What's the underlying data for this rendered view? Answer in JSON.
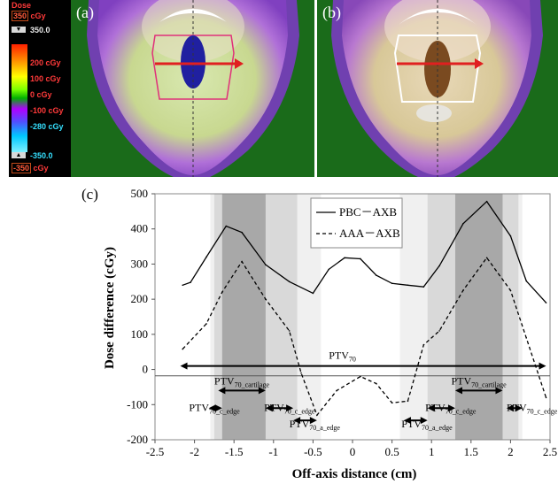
{
  "scale_bar": {
    "title": "Dose",
    "top_box": "350",
    "top_unit": "cGy",
    "max_label": "350.0",
    "levels": [
      "200 cGy",
      "100 cGy",
      "0 cGy",
      "-100 cGy",
      "-280 cGy"
    ],
    "min_label": "-350.0",
    "bottom_box": "-350",
    "bottom_unit": "cGy"
  },
  "panels": [
    {
      "label": "(a)"
    },
    {
      "label": "(b)"
    }
  ],
  "chart_label": "(c)",
  "chart_data": {
    "type": "line",
    "xlabel": "Off-axis distance (cm)",
    "ylabel": "Dose difference  (cGy)",
    "xlim": [
      -2.5,
      2.5
    ],
    "ylim": [
      -200,
      500
    ],
    "xticks": [
      "-2.5",
      "-2",
      "-1.5",
      "-1",
      "-0.5",
      "0",
      "0.5",
      "1",
      "1.5",
      "2",
      "2.5"
    ],
    "yticks": [
      "500",
      "400",
      "300",
      "200",
      "100",
      "0",
      "-100",
      "-200"
    ],
    "legend_position": "top-right",
    "series": [
      {
        "name": "PBC－AXB",
        "style": "solid",
        "x": [
          -2.15,
          -2.05,
          -1.85,
          -1.6,
          -1.4,
          -1.1,
          -0.8,
          -0.5,
          -0.3,
          -0.1,
          0.1,
          0.3,
          0.5,
          0.7,
          0.9,
          1.1,
          1.4,
          1.7,
          2.0,
          2.2,
          2.45
        ],
        "y": [
          240,
          248,
          320,
          408,
          390,
          298,
          250,
          217,
          285,
          318,
          315,
          268,
          245,
          240,
          235,
          295,
          415,
          478,
          380,
          252,
          190
        ]
      },
      {
        "name": "AAA－AXB",
        "style": "dashed",
        "x": [
          -2.15,
          -1.85,
          -1.65,
          -1.4,
          -1.1,
          -0.8,
          -0.65,
          -0.45,
          -0.2,
          0.1,
          0.3,
          0.5,
          0.7,
          0.9,
          1.1,
          1.4,
          1.7,
          2.0,
          2.2,
          2.45
        ],
        "y": [
          58,
          130,
          220,
          307,
          200,
          110,
          -10,
          -130,
          -60,
          -20,
          -40,
          -95,
          -90,
          70,
          110,
          225,
          318,
          225,
          90,
          -80
        ]
      }
    ],
    "bands": [
      {
        "from": -1.8,
        "to": -0.4,
        "shade": "#f0f0f0"
      },
      {
        "from": -1.75,
        "to": -0.7,
        "shade": "#d9d9d9"
      },
      {
        "from": -1.65,
        "to": -1.1,
        "shade": "#a8a8a8"
      },
      {
        "from": 0.6,
        "to": 2.15,
        "shade": "#f0f0f0"
      },
      {
        "from": 0.95,
        "to": 2.1,
        "shade": "#d9d9d9"
      },
      {
        "from": 1.3,
        "to": 1.9,
        "shade": "#a8a8a8"
      }
    ],
    "ref_line_y": -18,
    "annotations": [
      {
        "main": "PTV",
        "sub": "70",
        "from": -2.18,
        "to": 2.45,
        "y": 10,
        "label_x": -0.3,
        "label_y": 30
      },
      {
        "main": "PTV",
        "sub": "70_cartilage",
        "from": -1.7,
        "to": -1.1,
        "y": -60,
        "label_x": -1.75,
        "label_y": -43
      },
      {
        "main": "PTV",
        "sub": "70_c_edge",
        "from": -1.82,
        "to": -1.65,
        "y": -110,
        "label_x": -2.07,
        "label_y": -118
      },
      {
        "main": "PTV",
        "sub": "70_c_edge",
        "from": -1.1,
        "to": -0.75,
        "y": -110,
        "label_x": -1.12,
        "label_y": -118
      },
      {
        "main": "PTV",
        "sub": "70_a_edge",
        "from": -0.75,
        "to": -0.45,
        "y": -145,
        "label_x": -0.8,
        "label_y": -165
      },
      {
        "main": "PTV",
        "sub": "70_c_edge",
        "from": 0.95,
        "to": 1.3,
        "y": -110,
        "label_x": 0.92,
        "label_y": -118
      },
      {
        "main": "PTV",
        "sub": "70_a_edge",
        "from": 0.65,
        "to": 0.95,
        "y": -145,
        "label_x": 0.62,
        "label_y": -165
      },
      {
        "main": "PTV",
        "sub": "70_cartilage",
        "from": 1.3,
        "to": 1.9,
        "y": -60,
        "label_x": 1.25,
        "label_y": -43
      },
      {
        "main": "PTV",
        "sub": "70_c_edge",
        "from": 1.95,
        "to": 2.15,
        "y": -110,
        "label_x": 1.95,
        "label_y": -118
      }
    ]
  },
  "colors": {
    "ct_background": "#1a6b1a",
    "red_arrow": "#e02020",
    "contour": "#e0307a"
  }
}
